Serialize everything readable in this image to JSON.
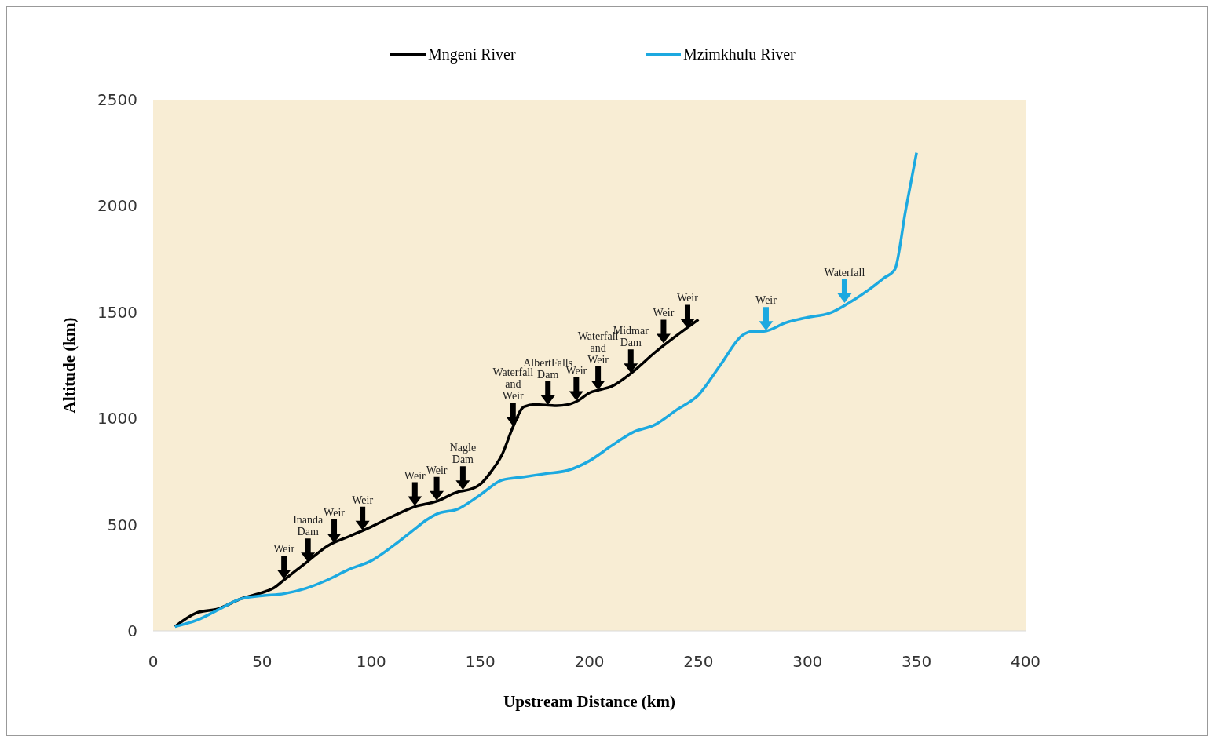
{
  "chart_data": {
    "type": "line",
    "xlabel": "Upstream Distance (km)",
    "ylabel": "Altitude (km)",
    "xlim": [
      0,
      400
    ],
    "xticks": [
      0,
      50,
      100,
      150,
      200,
      250,
      300,
      350,
      400
    ],
    "ylim": [
      0,
      2500
    ],
    "yticks": [
      0,
      500,
      1000,
      1500,
      2000,
      2500
    ],
    "legend": "top",
    "grid": false,
    "marker": "none",
    "line_style": "solid",
    "series": [
      {
        "name": "Mngeni River",
        "color": "#000000",
        "x": [
          10,
          20,
          30,
          40,
          50,
          55,
          60,
          70,
          80,
          90,
          100,
          110,
          120,
          130,
          140,
          145,
          150,
          155,
          160,
          165,
          170,
          175,
          185,
          190,
          195,
          200,
          205,
          210,
          220,
          230,
          240,
          250
        ],
        "values": [
          20,
          85,
          105,
          150,
          180,
          200,
          240,
          320,
          400,
          445,
          490,
          540,
          585,
          610,
          655,
          665,
          690,
          750,
          830,
          960,
          1055,
          1065,
          1060,
          1065,
          1085,
          1120,
          1135,
          1150,
          1220,
          1310,
          1390,
          1465
        ]
      },
      {
        "name": "Mzimkhulu River",
        "color": "#1ca9e0",
        "x": [
          10,
          20,
          30,
          40,
          50,
          60,
          70,
          80,
          90,
          100,
          110,
          120,
          125,
          130,
          140,
          150,
          160,
          170,
          180,
          190,
          200,
          210,
          220,
          230,
          240,
          250,
          260,
          270,
          275,
          280,
          290,
          300,
          310,
          320,
          330,
          335,
          340,
          345,
          350
        ],
        "values": [
          20,
          50,
          100,
          150,
          165,
          175,
          200,
          240,
          290,
          330,
          400,
          480,
          520,
          550,
          575,
          640,
          710,
          725,
          740,
          755,
          800,
          870,
          935,
          970,
          1040,
          1110,
          1250,
          1390,
          1410,
          1410,
          1450,
          1475,
          1495,
          1550,
          1620,
          1660,
          1700,
          1980,
          2250
        ]
      }
    ],
    "annotations": [
      {
        "text": "Weir",
        "x": 60,
        "y": 240
      },
      {
        "text": "Inanda\nDam",
        "x": 71,
        "y": 320
      },
      {
        "text": "Weir",
        "x": 83,
        "y": 410
      },
      {
        "text": "Weir",
        "x": 96,
        "y": 470
      },
      {
        "text": "Weir",
        "x": 120,
        "y": 585
      },
      {
        "text": "Weir",
        "x": 130,
        "y": 610
      },
      {
        "text": "Nagle\nDam",
        "x": 142,
        "y": 660
      },
      {
        "text": "Waterfall\nand\nWeir",
        "x": 165,
        "y": 960
      },
      {
        "text": "AlbertFalls\nDam",
        "x": 181,
        "y": 1060
      },
      {
        "text": "Weir",
        "x": 194,
        "y": 1080
      },
      {
        "text": "Waterfall\nand\nWeir",
        "x": 204,
        "y": 1130
      },
      {
        "text": "Midmar\nDam",
        "x": 219,
        "y": 1210
      },
      {
        "text": "Weir",
        "x": 234,
        "y": 1350
      },
      {
        "text": "Weir",
        "x": 245,
        "y": 1420
      },
      {
        "text": "Weir",
        "x": 281,
        "y": 1410
      },
      {
        "text": "Waterfall",
        "x": 317,
        "y": 1540
      }
    ]
  }
}
